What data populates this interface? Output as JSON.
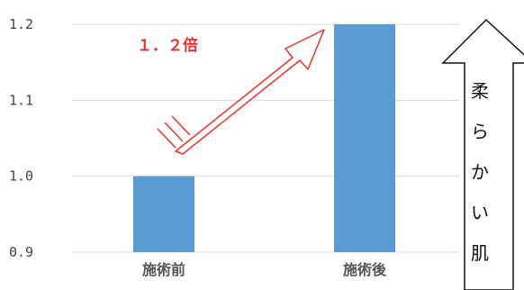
{
  "colors": {
    "bar": "#5b9bd5",
    "arrow": "#e8322f",
    "grid": "#d9d9d9"
  },
  "chart_data": {
    "type": "bar",
    "categories": [
      "施術前",
      "施術後"
    ],
    "values": [
      1.0,
      1.2
    ],
    "ylim": [
      0.9,
      1.2
    ],
    "yticks": [
      "0.9",
      "1.0",
      "1.1",
      "1.2"
    ],
    "title": "",
    "xlabel": "",
    "ylabel": "",
    "grid": true,
    "annotation": "１．２倍",
    "side_label": [
      "柔",
      "ら",
      "か",
      "い",
      "肌"
    ]
  }
}
